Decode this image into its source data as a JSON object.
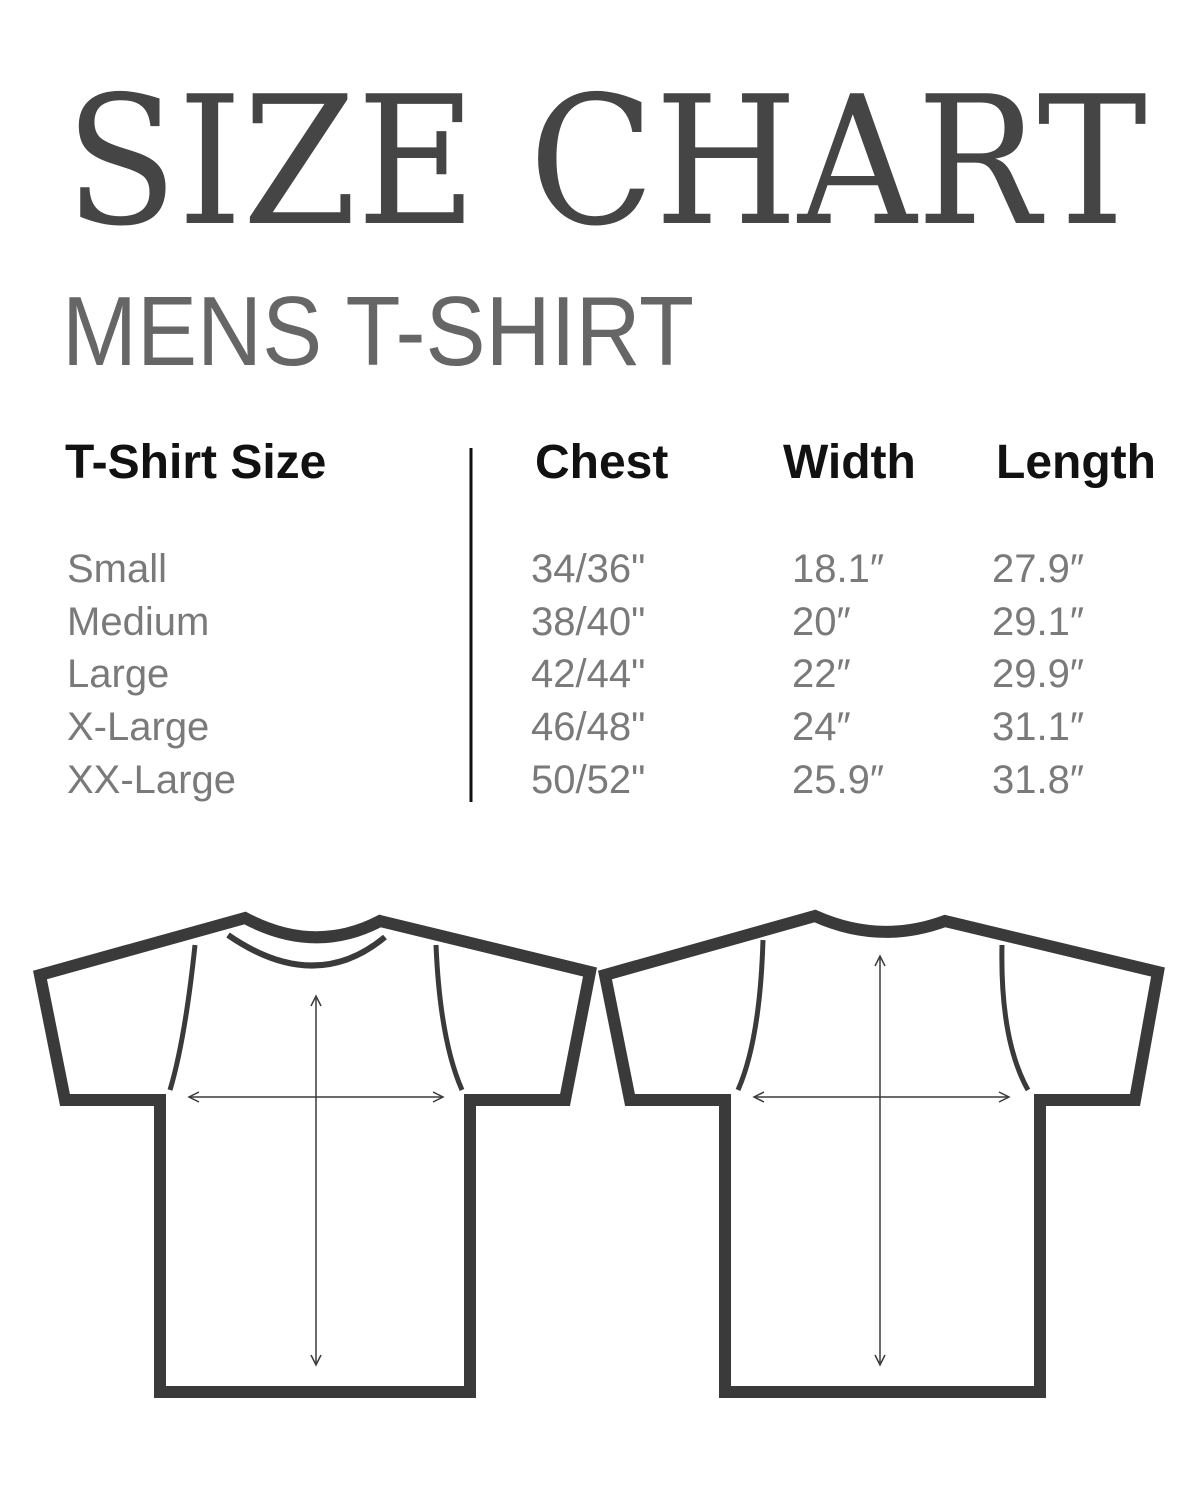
{
  "title": "SIZE CHART",
  "subtitle": "MENS T-SHIRT",
  "colors": {
    "title": "#454545",
    "subtitle": "#666666",
    "outline": "#3a3a3a",
    "values": "#7a7a7a"
  },
  "table": {
    "headers": [
      "T-Shirt Size",
      "Chest",
      "Width",
      "Length"
    ],
    "rows": [
      [
        "Small",
        "34/36\"",
        "18.1″",
        "27.9″"
      ],
      [
        "Medium",
        "38/40\"",
        "20″",
        "29.1″"
      ],
      [
        "Large",
        "42/44\"",
        "22″",
        "29.9″"
      ],
      [
        "X-Large",
        "46/48\"",
        "24″",
        "31.1″"
      ],
      [
        "XX-Large",
        "50/52\"",
        "25.9″",
        "31.8″"
      ]
    ]
  },
  "diagrams": [
    "t-shirt-front",
    "t-shirt-back"
  ]
}
